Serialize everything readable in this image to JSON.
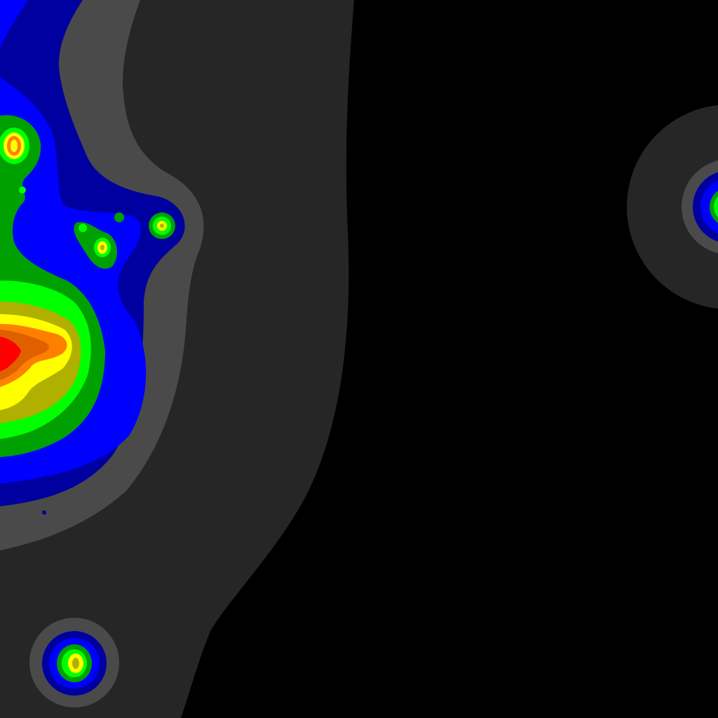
{
  "map": {
    "kind": "density-heatmap-contours",
    "background": "#000000",
    "levels": [
      {
        "level": 1,
        "color": "#262626"
      },
      {
        "level": 2,
        "color": "#4a4a4a"
      },
      {
        "level": 3,
        "color": "#0000a0"
      },
      {
        "level": 4,
        "color": "#0000ff"
      },
      {
        "level": 5,
        "color": "#00a000"
      },
      {
        "level": 6,
        "color": "#00ff00"
      },
      {
        "level": 7,
        "color": "#b0b000"
      },
      {
        "level": 8,
        "color": "#ffff00"
      },
      {
        "level": 9,
        "color": "#ff8000"
      },
      {
        "level": 10,
        "color": "#e06000"
      },
      {
        "level": 11,
        "color": "#ff0000"
      }
    ],
    "hotspots": [
      {
        "id": "main-cluster",
        "peak_level": 11
      },
      {
        "id": "upper-left-cluster",
        "peak_level": 9
      },
      {
        "id": "small-cluster-a",
        "peak_level": 8
      },
      {
        "id": "small-cluster-b",
        "peak_level": 8
      },
      {
        "id": "bottom-left-cluster",
        "peak_level": 8
      },
      {
        "id": "right-edge-cluster",
        "peak_level": 6
      }
    ]
  }
}
